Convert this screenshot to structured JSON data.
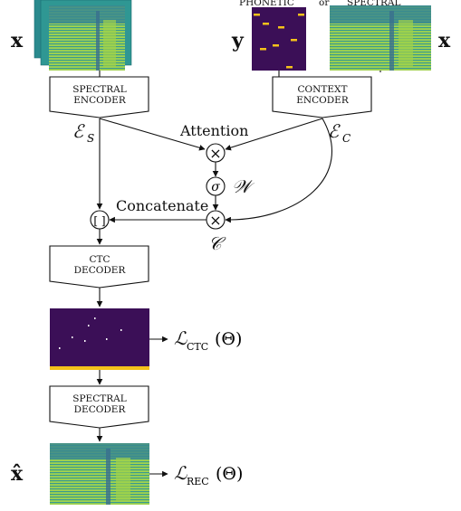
{
  "colors": {
    "spec_bg": "#2f9e8f",
    "spec_low": "#3fae7c",
    "spec_high": "#d9e53a",
    "spec_top": "#47b37a",
    "dark_purple": "#3b0f57",
    "yellow": "#f4c21a",
    "line": "#111111"
  },
  "top": {
    "header_phonetic": "PHONETIC",
    "header_or": "or",
    "header_spectral": "SPECTRAL",
    "x_left": "x",
    "y_label": "y",
    "x_right": "x"
  },
  "encoders": {
    "spectral": {
      "line1": "SPECTRAL",
      "line2": "ENCODER"
    },
    "context": {
      "line1": "CONTEXT",
      "line2": "ENCODER"
    }
  },
  "symbols": {
    "es": "ℰ",
    "es_sub": "S",
    "ec": "ℰ",
    "ec_sub": "C",
    "w": "𝒲",
    "c": "𝒞",
    "times": "×",
    "sigma": "σ",
    "concat": "[ ]"
  },
  "labels": {
    "attention": "Attention",
    "concatenate": "Concatenate"
  },
  "decoders": {
    "ctc": {
      "line1": "CTC",
      "line2": "DECODER"
    },
    "spectral": {
      "line1": "SPECTRAL",
      "line2": "DECODER"
    }
  },
  "losses": {
    "ctc": {
      "main": "ℒ",
      "sub": "CTC",
      "arg": "(Θ)"
    },
    "rec": {
      "main": "ℒ",
      "sub": "REC",
      "arg": "(Θ)"
    }
  },
  "output": {
    "xhat": "x̂"
  }
}
